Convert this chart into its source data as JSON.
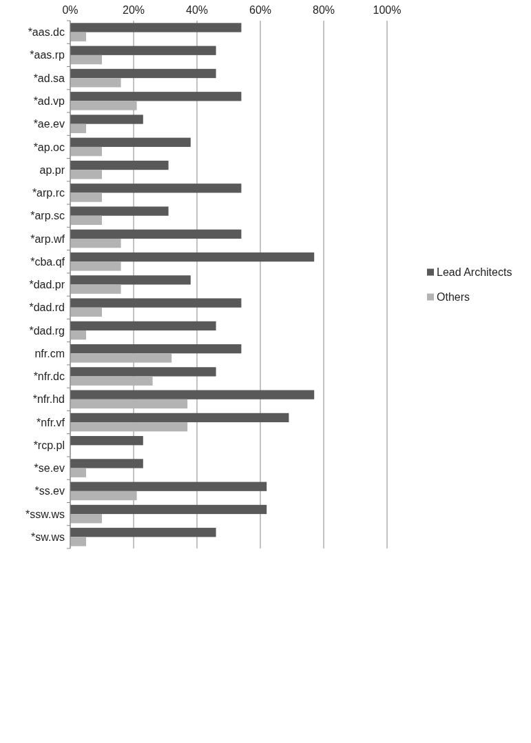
{
  "chart_data": {
    "type": "bar",
    "orientation": "horizontal",
    "categories": [
      "*aas.dc",
      "*aas.rp",
      "*ad.sa",
      "*ad.vp",
      "*ae.ev",
      "*ap.oc",
      "ap.pr",
      "*arp.rc",
      "*arp.sc",
      "*arp.wf",
      "*cba.qf",
      "*dad.pr",
      "*dad.rd",
      "*dad.rg",
      "nfr.cm",
      "*nfr.dc",
      "*nfr.hd",
      "*nfr.vf",
      "*rcp.pl",
      "*se.ev",
      "*ss.ev",
      "*ssw.ws",
      "*sw.ws"
    ],
    "series": [
      {
        "name": "Lead Architects",
        "color": "#595959",
        "values": [
          54,
          46,
          46,
          54,
          23,
          38,
          31,
          54,
          31,
          54,
          77,
          38,
          54,
          46,
          54,
          46,
          77,
          69,
          23,
          23,
          62,
          62,
          46
        ]
      },
      {
        "name": "Others",
        "color": "#b3b3b3",
        "values": [
          5,
          10,
          16,
          21,
          5,
          10,
          10,
          10,
          10,
          16,
          16,
          16,
          10,
          5,
          32,
          26,
          37,
          37,
          0,
          5,
          21,
          10,
          5
        ]
      }
    ],
    "xlim": [
      0,
      100
    ],
    "xticks": [
      {
        "value": 0,
        "label": "0%"
      },
      {
        "value": 20,
        "label": "20%"
      },
      {
        "value": 40,
        "label": "40%"
      },
      {
        "value": 60,
        "label": "60%"
      },
      {
        "value": 80,
        "label": "80%"
      },
      {
        "value": 100,
        "label": "100%"
      }
    ],
    "grid": "x",
    "legend": "right"
  }
}
